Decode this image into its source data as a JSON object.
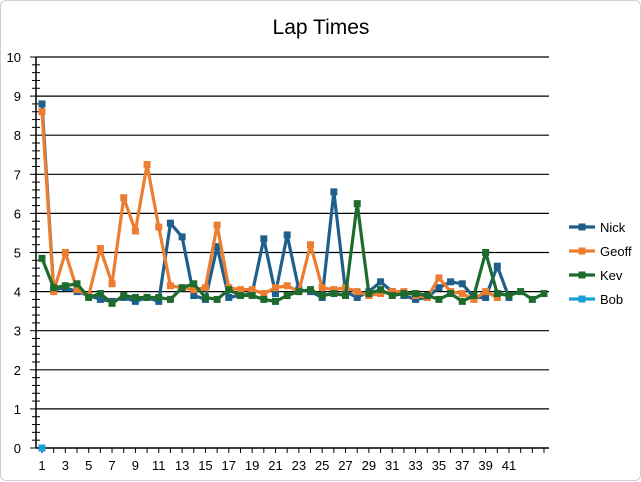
{
  "chart_data": {
    "type": "line",
    "title": "Lap Times",
    "xlabel": "",
    "ylabel": "",
    "ylim": [
      0,
      10
    ],
    "y_ticks": [
      "0",
      "1",
      "2",
      "3",
      "4",
      "5",
      "6",
      "7",
      "8",
      "9",
      "10"
    ],
    "x_tick_labels": [
      "1",
      "3",
      "5",
      "7",
      "9",
      "11",
      "13",
      "15",
      "17",
      "19",
      "21",
      "23",
      "25",
      "27",
      "29",
      "31",
      "33",
      "35",
      "37",
      "39",
      "41"
    ],
    "grid": "horizontal",
    "legend_position": "right",
    "series": [
      {
        "name": "Nick",
        "color": "#1f5f8b",
        "values": [
          8.8,
          4.05,
          4.1,
          4.0,
          3.9,
          3.8,
          3.75,
          3.85,
          3.75,
          3.85,
          3.75,
          5.75,
          5.4,
          3.9,
          3.8,
          5.15,
          3.85,
          3.9,
          3.95,
          5.35,
          3.95,
          5.45,
          4.05,
          4.0,
          3.85,
          6.55,
          4.0,
          3.85,
          4.0,
          4.25,
          4.0,
          3.9,
          3.8,
          3.85,
          4.1,
          4.25,
          4.2,
          3.85,
          3.85,
          4.65,
          3.85
        ]
      },
      {
        "name": "Geoff",
        "color": "#ed7d31",
        "values": [
          8.6,
          4.0,
          5.0,
          4.05,
          3.9,
          5.1,
          4.2,
          6.4,
          5.55,
          7.25,
          5.65,
          4.15,
          4.1,
          4.05,
          4.1,
          5.7,
          4.1,
          4.05,
          4.05,
          3.95,
          4.1,
          4.15,
          4.0,
          5.2,
          4.1,
          4.05,
          4.1,
          4.0,
          3.9,
          3.95,
          4.0,
          4.0,
          3.9,
          3.85,
          4.35,
          4.0,
          3.95,
          3.8,
          4.0,
          3.85
        ]
      },
      {
        "name": "Kev",
        "color": "#1e6b2e",
        "values": [
          4.85,
          4.1,
          4.15,
          4.2,
          3.85,
          3.95,
          3.7,
          3.9,
          3.85,
          3.85,
          3.85,
          3.8,
          4.1,
          4.2,
          3.85,
          3.8,
          4.05,
          3.9,
          3.9,
          3.8,
          3.75,
          3.9,
          4.0,
          4.05,
          3.9,
          3.95,
          3.9,
          6.25,
          3.95,
          4.05,
          3.9,
          3.95,
          3.95,
          3.9,
          3.8,
          3.95,
          3.75,
          3.9,
          5.0,
          3.95,
          3.9,
          4.0,
          3.8,
          3.95
        ]
      },
      {
        "name": "Bob",
        "color": "#1aa0d8",
        "values": [
          0
        ]
      }
    ]
  }
}
